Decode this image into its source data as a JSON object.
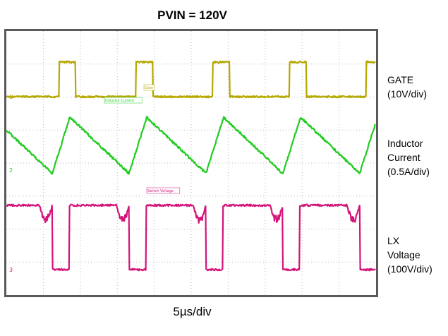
{
  "chart_data": {
    "type": "line",
    "title": "PVIN = 120V",
    "xlabel": "5µs/div",
    "grid": true,
    "legend_position": "right",
    "series": [
      {
        "name": "GATE",
        "scale_label": "(10V/div)",
        "color": "#b5a800",
        "tag": "Gate",
        "kind": "pulse",
        "period_div": 2.08,
        "first_rise_div": 1.42,
        "duty": 0.22,
        "low_div": 0.0,
        "high_div": 1.05
      },
      {
        "name": "Inductor",
        "name_line2": "Current",
        "scale_label": "(0.5A/div)",
        "color": "#22cc22",
        "tag": "Inductor Current",
        "kind": "triangle",
        "period_div": 2.08,
        "first_valley_div": 1.24,
        "duty": 0.23,
        "min_div": -0.1,
        "max_div": 1.6
      },
      {
        "name": "LX",
        "name_line2": "Voltage",
        "scale_label": "(100V/div)",
        "color": "#d4147a",
        "tag": "Switch Voltage",
        "kind": "switch",
        "period_div": 2.08,
        "first_fall_div": 1.24,
        "duty": 0.22,
        "low_div": 0.0,
        "high_div": 1.95,
        "spike_div": 0.55
      }
    ]
  }
}
